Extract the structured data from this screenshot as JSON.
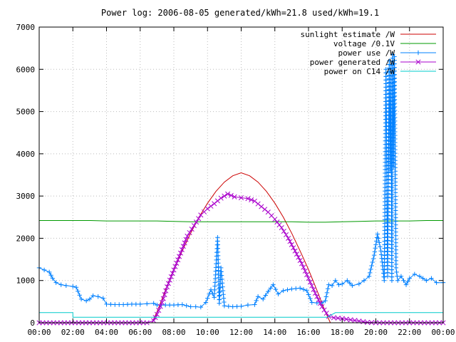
{
  "chart_data": {
    "type": "line",
    "title": "Power log: 2006-08-05 generated/kWh=21.8 used/kWh=19.1",
    "xlabel": "",
    "ylabel": "",
    "xlim": [
      0,
      24
    ],
    "ylim": [
      0,
      7000
    ],
    "x_ticks": [
      "00:00",
      "02:00",
      "04:00",
      "06:00",
      "08:00",
      "10:00",
      "12:00",
      "14:00",
      "16:00",
      "18:00",
      "20:00",
      "22:00",
      "00:00"
    ],
    "y_ticks": [
      "0",
      "1000",
      "2000",
      "3000",
      "4000",
      "5000",
      "6000",
      "7000"
    ],
    "grid": true,
    "legend_position": "top-right",
    "series": [
      {
        "name": "sunlight estimate /W",
        "color": "#cc0000",
        "marker": "none",
        "x": [
          6.7,
          7.0,
          7.5,
          8.0,
          8.5,
          9.0,
          9.5,
          10.0,
          10.5,
          11.0,
          11.5,
          12.0,
          12.5,
          13.0,
          13.5,
          14.0,
          14.5,
          15.0,
          15.5,
          16.0,
          16.5,
          17.0,
          17.3
        ],
        "values": [
          0,
          260,
          770,
          1260,
          1700,
          2120,
          2500,
          2830,
          3110,
          3330,
          3480,
          3550,
          3480,
          3330,
          3110,
          2830,
          2500,
          2120,
          1700,
          1260,
          770,
          260,
          0
        ]
      },
      {
        "name": "voltage /0.1V",
        "color": "#009900",
        "marker": "none",
        "x": [
          0,
          1,
          2,
          3,
          4,
          5,
          6,
          7,
          8,
          9,
          10,
          11,
          12,
          13,
          14,
          15,
          16,
          17,
          18,
          19,
          20,
          21,
          22,
          23,
          24
        ],
        "values": [
          2420,
          2420,
          2420,
          2420,
          2410,
          2410,
          2410,
          2410,
          2400,
          2390,
          2390,
          2390,
          2390,
          2390,
          2390,
          2390,
          2380,
          2380,
          2390,
          2400,
          2410,
          2410,
          2410,
          2420,
          2420
        ]
      },
      {
        "name": "power use /W",
        "color": "#0080ff",
        "marker": "+",
        "x": [
          0,
          0.3,
          0.6,
          0.8,
          1.0,
          1.3,
          1.6,
          2.0,
          2.2,
          2.5,
          2.8,
          3.0,
          3.2,
          3.5,
          3.8,
          4.0,
          4.5,
          5.0,
          5.5,
          6.0,
          6.4,
          6.8,
          7.0,
          7.5,
          8.0,
          8.5,
          9.0,
          9.3,
          9.6,
          9.9,
          10.2,
          10.4,
          10.6,
          10.7,
          10.8,
          11.0,
          11.5,
          12.0,
          12.4,
          12.8,
          13.0,
          13.3,
          13.6,
          13.9,
          14.2,
          14.5,
          15.0,
          15.5,
          15.9,
          16.2,
          16.5,
          16.8,
          17.0,
          17.2,
          17.4,
          17.6,
          17.8,
          18.0,
          18.3,
          18.6,
          19.0,
          19.3,
          19.6,
          19.9,
          20.1,
          20.3,
          20.5,
          20.6,
          20.7,
          20.8,
          20.85,
          20.9,
          20.95,
          21.0,
          21.05,
          21.1,
          21.2,
          21.3,
          21.5,
          21.8,
          22.0,
          22.3,
          22.6,
          23.0,
          23.3,
          23.6,
          24.0
        ],
        "values": [
          1300,
          1250,
          1200,
          1050,
          950,
          900,
          880,
          860,
          840,
          560,
          520,
          560,
          640,
          620,
          580,
          440,
          430,
          430,
          440,
          440,
          450,
          460,
          420,
          420,
          420,
          430,
          380,
          380,
          370,
          480,
          780,
          600,
          2020,
          460,
          1300,
          400,
          380,
          390,
          420,
          430,
          620,
          560,
          740,
          900,
          680,
          760,
          800,
          820,
          760,
          480,
          470,
          470,
          520,
          900,
          880,
          1000,
          900,
          920,
          1000,
          880,
          920,
          1000,
          1100,
          1600,
          2100,
          1700,
          1000,
          6000,
          1100,
          6200,
          3600,
          6100,
          1000,
          6350,
          3700,
          6300,
          1300,
          1000,
          1100,
          900,
          1050,
          1150,
          1100,
          1000,
          1050,
          950,
          950
        ]
      },
      {
        "name": "power generated /W",
        "color": "#aa00cc",
        "marker": "x",
        "x": [
          0,
          6.4,
          6.8,
          7.0,
          7.3,
          7.6,
          8.0,
          8.4,
          8.8,
          9.2,
          9.6,
          10.0,
          10.4,
          10.8,
          11.2,
          11.6,
          12.0,
          12.4,
          12.8,
          13.2,
          13.6,
          14.0,
          14.4,
          14.8,
          15.2,
          15.6,
          16.0,
          16.4,
          16.8,
          17.2,
          17.5,
          18.0,
          19.0,
          19.5,
          20.0,
          24.0
        ],
        "values": [
          0,
          0,
          50,
          200,
          480,
          850,
          1250,
          1650,
          2050,
          2300,
          2550,
          2700,
          2820,
          2950,
          3050,
          2980,
          2960,
          2940,
          2880,
          2750,
          2620,
          2450,
          2250,
          2000,
          1700,
          1400,
          1050,
          700,
          380,
          150,
          120,
          100,
          40,
          10,
          0,
          0
        ]
      },
      {
        "name": "power on C14 /W",
        "color": "#00cccc",
        "marker": "none",
        "x": [
          0,
          2.0,
          2.0,
          17.1,
          17.6,
          24
        ],
        "values": [
          240,
          240,
          130,
          130,
          240,
          240
        ]
      }
    ]
  }
}
